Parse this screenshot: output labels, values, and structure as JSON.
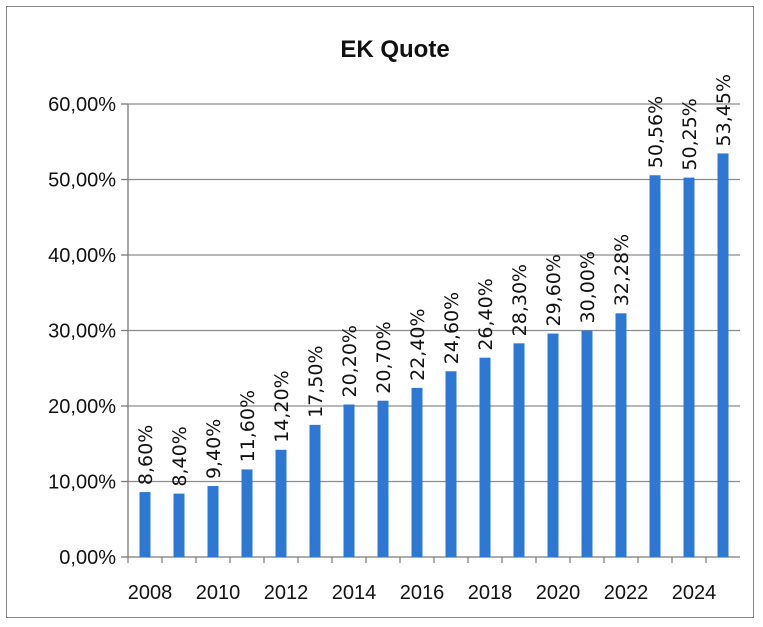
{
  "chart_data": {
    "type": "bar",
    "title": "EK Quote",
    "xlabel": "",
    "ylabel": "",
    "categories": [
      "2008",
      "2009",
      "2010",
      "2011",
      "2012",
      "2013",
      "2014",
      "2015",
      "2016",
      "2017",
      "2018",
      "2019",
      "2020",
      "2021",
      "2022",
      "2023",
      "2024",
      "2025"
    ],
    "values": [
      8.6,
      8.4,
      9.4,
      11.6,
      14.2,
      17.5,
      20.2,
      20.7,
      22.4,
      24.6,
      26.4,
      28.3,
      29.6,
      30.0,
      32.28,
      50.56,
      50.25,
      53.45
    ],
    "data_labels": [
      "8,60%",
      "8,40%",
      "9,40%",
      "11,60%",
      "14,20%",
      "17,50%",
      "20,20%",
      "20,70%",
      "22,40%",
      "24,60%",
      "26,40%",
      "28,30%",
      "29,60%",
      "30,00%",
      "32,28%",
      "50,56%",
      "50,25%",
      "53,45%"
    ],
    "x_tick_labels": [
      "2008",
      "2010",
      "2012",
      "2014",
      "2016",
      "2018",
      "2020",
      "2022",
      "2024"
    ],
    "y_ticks": [
      0,
      10,
      20,
      30,
      40,
      50,
      60
    ],
    "y_tick_labels": [
      "0,00%",
      "10,00%",
      "20,00%",
      "30,00%",
      "40,00%",
      "50,00%",
      "60,00%"
    ],
    "ylim": [
      0,
      60
    ],
    "grid": true,
    "legend": "none",
    "bar_color": "#2e78d2",
    "grid_color": "#8c8c8c"
  }
}
